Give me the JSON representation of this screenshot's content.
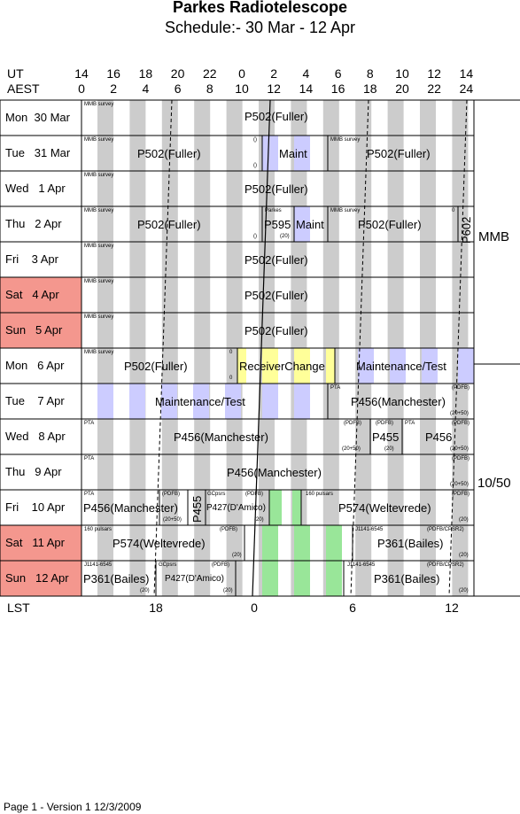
{
  "header": {
    "title": "Parkes Radiotelescope",
    "subtitle": "Schedule:- 30 Mar - 12 Apr",
    "ut_label": "UT",
    "aest_label": "AEST",
    "ut_ticks": [
      "14",
      "16",
      "18",
      "20",
      "22",
      "0",
      "2",
      "4",
      "6",
      "8",
      "10",
      "12",
      "14"
    ],
    "aest_ticks": [
      "0",
      "2",
      "4",
      "6",
      "8",
      "10",
      "12",
      "14",
      "16",
      "18",
      "20",
      "22",
      "24"
    ]
  },
  "days": [
    {
      "label": "Mon  30 Mar",
      "weekend": false
    },
    {
      "label": "Tue   31 Mar",
      "weekend": false
    },
    {
      "label": "Wed   1 Apr",
      "weekend": false
    },
    {
      "label": "Thu   2 Apr",
      "weekend": false
    },
    {
      "label": "Fri    3 Apr",
      "weekend": false
    },
    {
      "label": "Sat   4 Apr",
      "weekend": true
    },
    {
      "label": "Sun   5 Apr",
      "weekend": true
    },
    {
      "label": "Mon   6 Apr",
      "weekend": false
    },
    {
      "label": "Tue    7 Apr",
      "weekend": false
    },
    {
      "label": "Wed   8 Apr",
      "weekend": false
    },
    {
      "label": "Thu   9 Apr",
      "weekend": false
    },
    {
      "label": "Fri    10 Apr",
      "weekend": false
    },
    {
      "label": "Sat   11 Apr",
      "weekend": true
    },
    {
      "label": "Sun   12 Apr",
      "weekend": true
    }
  ],
  "receivers": {
    "first": "MMB",
    "second": "10/50"
  },
  "blocks": {
    "r0_main": "P502(Fuller)",
    "r1_a": "P502(Fuller)",
    "r1_maint": "Maint",
    "r1_b": "P502(Fuller)",
    "r2_main": "P502(Fuller)",
    "r3_a": "P502(Fuller)",
    "r3_p595": "P595",
    "r3_maint": "Maint",
    "r3_b": "P502(Fuller)",
    "r3_p602": "P602",
    "r4_main": "P502(Fuller)",
    "r5_main": "P502(Fuller)",
    "r6_main": "P502(Fuller)",
    "r7_a": "P502(Fuller)",
    "r7_rc": "ReceiverChange",
    "r7_mt": "Maintenance/Test",
    "r8_mt": "Maintenance/Test",
    "r8_p456": "P456(Manchester)",
    "r9_a": "P456(Manchester)",
    "r9_p455": "P455",
    "r9_b": "P456",
    "r10_main": "P456(Manchester)",
    "r11_a": "P456(Manchester)",
    "r11_p455": "P455",
    "r11_p427": "P427(D'Amico)",
    "r11_p574": "P574(Weltevrede)",
    "r12_p574": "P574(Weltevrede)",
    "r12_p361": "P361(Bailes)",
    "r13_a": "P361(Bailes)",
    "r13_p427": "P427(D'Amico)",
    "r13_b": "P361(Bailes)"
  },
  "small_notes": {
    "mmb": "MMB survey",
    "parkes": "Parkes",
    "pta": "PTA",
    "pdfb": "(PDFB)",
    "p2050": "(20+50)",
    "p2050b": "(20+50)",
    "p20": "(20)",
    "gcpsrs": "GCpsrs",
    "pulsars160": "160 pulsars",
    "j1141a": "J1141-6545",
    "j1141b": "J1141-6545",
    "pdfbcpsr2": "(PDFB/CPSR2)",
    "zero": "0",
    "p0": "()"
  },
  "lst": {
    "label": "LST",
    "ticks": [
      "18",
      "0",
      "6",
      "12"
    ]
  },
  "footer": {
    "text": "Page 1 - Version 1  12/3/2009"
  },
  "colors": {
    "weekend": "#f4978e",
    "grey_band": "#cccccc",
    "maint": "#ccccff",
    "receiver_change": "#ffff99",
    "green": "#99e699"
  }
}
